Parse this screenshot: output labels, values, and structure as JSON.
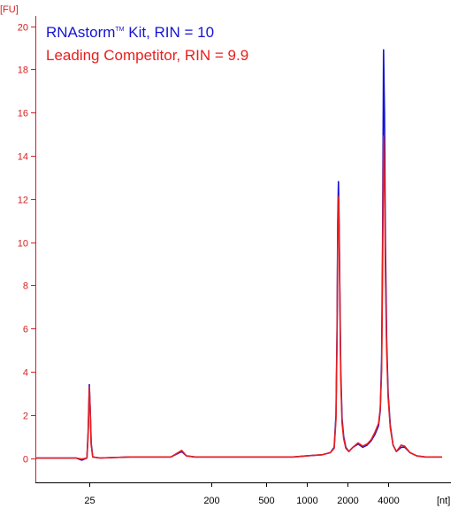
{
  "chart_data": {
    "type": "line",
    "ylabel": "[FU]",
    "xlabel": "[nt]",
    "ylim": [
      0,
      20.5
    ],
    "x_scale": "log",
    "grid": false,
    "colors": {
      "axis_y": "#d62020",
      "axis_x": "#000000"
    },
    "y_ticks": [
      {
        "value": 0,
        "label": "0"
      },
      {
        "value": 2,
        "label": "2"
      },
      {
        "value": 4,
        "label": "4"
      },
      {
        "value": 6,
        "label": "6"
      },
      {
        "value": 8,
        "label": "8"
      },
      {
        "value": 10,
        "label": "10"
      },
      {
        "value": 12,
        "label": "12"
      },
      {
        "value": 14,
        "label": "14"
      },
      {
        "value": 16,
        "label": "16"
      },
      {
        "value": 18,
        "label": "18"
      },
      {
        "value": 20,
        "label": "20"
      }
    ],
    "x_ticks": [
      {
        "value": 25,
        "label": "25"
      },
      {
        "value": 200,
        "label": "200"
      },
      {
        "value": 500,
        "label": "500"
      },
      {
        "value": 1000,
        "label": "1000"
      },
      {
        "value": 2000,
        "label": "2000"
      },
      {
        "value": 4000,
        "label": "4000"
      }
    ],
    "legend": {
      "placement": "top-left",
      "entries": [
        {
          "before": "RNAstorm",
          "sup": "TM",
          "after": " Kit, RIN = 10",
          "color": "#1414d4"
        },
        {
          "before": "Leading Competitor, RIN = 9.9",
          "sup": "",
          "after": "",
          "color": "#e81e1e"
        }
      ]
    },
    "series": [
      {
        "color": "#1414d4",
        "points": [
          [
            10,
            0
          ],
          [
            20,
            0
          ],
          [
            22,
            -0.1
          ],
          [
            24,
            0
          ],
          [
            24.5,
            1.2
          ],
          [
            24.8,
            2.5
          ],
          [
            25,
            3.4
          ],
          [
            25.4,
            2.2
          ],
          [
            25.8,
            0.7
          ],
          [
            26.5,
            0.05
          ],
          [
            30,
            0
          ],
          [
            50,
            0.05
          ],
          [
            100,
            0.05
          ],
          [
            120,
            0.3
          ],
          [
            130,
            0.1
          ],
          [
            150,
            0.05
          ],
          [
            200,
            0.05
          ],
          [
            300,
            0.05
          ],
          [
            500,
            0.05
          ],
          [
            800,
            0.05
          ],
          [
            1000,
            0.1
          ],
          [
            1300,
            0.15
          ],
          [
            1500,
            0.25
          ],
          [
            1600,
            0.5
          ],
          [
            1650,
            2.0
          ],
          [
            1680,
            6.0
          ],
          [
            1700,
            11.0
          ],
          [
            1720,
            12.8
          ],
          [
            1740,
            11.0
          ],
          [
            1760,
            8.0
          ],
          [
            1790,
            4.0
          ],
          [
            1830,
            1.8
          ],
          [
            1880,
            1.0
          ],
          [
            1950,
            0.5
          ],
          [
            2050,
            0.3
          ],
          [
            2200,
            0.5
          ],
          [
            2400,
            0.65
          ],
          [
            2600,
            0.5
          ],
          [
            2800,
            0.6
          ],
          [
            3000,
            0.8
          ],
          [
            3200,
            1.1
          ],
          [
            3400,
            1.5
          ],
          [
            3500,
            2.2
          ],
          [
            3580,
            4.5
          ],
          [
            3640,
            10.0
          ],
          [
            3700,
            18.9
          ],
          [
            3760,
            16.0
          ],
          [
            3820,
            10.0
          ],
          [
            3900,
            5.5
          ],
          [
            4000,
            3.0
          ],
          [
            4150,
            1.5
          ],
          [
            4350,
            0.6
          ],
          [
            4600,
            0.3
          ],
          [
            5000,
            0.5
          ],
          [
            5300,
            0.5
          ],
          [
            5800,
            0.25
          ],
          [
            6500,
            0.1
          ],
          [
            7500,
            0.05
          ],
          [
            9000,
            0.05
          ],
          [
            10000,
            0.05
          ]
        ]
      },
      {
        "color": "#e81e1e",
        "points": [
          [
            10,
            0
          ],
          [
            20,
            0
          ],
          [
            22,
            -0.05
          ],
          [
            24,
            0
          ],
          [
            24.5,
            1.0
          ],
          [
            24.8,
            2.3
          ],
          [
            25,
            3.3
          ],
          [
            25.4,
            2.1
          ],
          [
            25.8,
            0.6
          ],
          [
            26.5,
            0.05
          ],
          [
            30,
            0
          ],
          [
            50,
            0.05
          ],
          [
            100,
            0.05
          ],
          [
            120,
            0.35
          ],
          [
            130,
            0.1
          ],
          [
            150,
            0.05
          ],
          [
            200,
            0.05
          ],
          [
            300,
            0.05
          ],
          [
            500,
            0.05
          ],
          [
            800,
            0.05
          ],
          [
            1000,
            0.1
          ],
          [
            1300,
            0.15
          ],
          [
            1500,
            0.25
          ],
          [
            1600,
            0.45
          ],
          [
            1650,
            1.8
          ],
          [
            1680,
            5.5
          ],
          [
            1700,
            10.5
          ],
          [
            1720,
            12.1
          ],
          [
            1740,
            10.5
          ],
          [
            1760,
            7.5
          ],
          [
            1790,
            3.6
          ],
          [
            1830,
            1.6
          ],
          [
            1880,
            0.9
          ],
          [
            1950,
            0.45
          ],
          [
            2050,
            0.3
          ],
          [
            2200,
            0.5
          ],
          [
            2400,
            0.7
          ],
          [
            2600,
            0.55
          ],
          [
            2800,
            0.65
          ],
          [
            3000,
            0.85
          ],
          [
            3200,
            1.2
          ],
          [
            3400,
            1.6
          ],
          [
            3500,
            2.3
          ],
          [
            3580,
            4.0
          ],
          [
            3640,
            8.5
          ],
          [
            3700,
            14.9
          ],
          [
            3760,
            13.0
          ],
          [
            3820,
            8.5
          ],
          [
            3900,
            5.0
          ],
          [
            4000,
            2.8
          ],
          [
            4150,
            1.4
          ],
          [
            4350,
            0.6
          ],
          [
            4600,
            0.3
          ],
          [
            5000,
            0.6
          ],
          [
            5300,
            0.55
          ],
          [
            5800,
            0.25
          ],
          [
            6500,
            0.1
          ],
          [
            7500,
            0.05
          ],
          [
            9000,
            0.05
          ],
          [
            10000,
            0.05
          ]
        ]
      }
    ]
  }
}
